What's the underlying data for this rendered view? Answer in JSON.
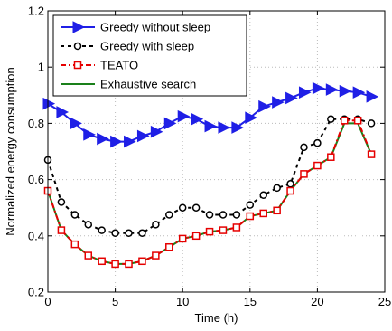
{
  "chart_data": {
    "type": "line",
    "xlabel": "Time (h)",
    "ylabel": "Normalized energy consumption",
    "xlim": [
      0,
      25
    ],
    "ylim": [
      0.2,
      1.2
    ],
    "xticks": [
      0,
      5,
      10,
      15,
      20,
      25
    ],
    "yticks": [
      0.2,
      0.4,
      0.6,
      0.8,
      1,
      1.2
    ],
    "xtick_labels": [
      "0",
      "5",
      "10",
      "15",
      "20",
      "25"
    ],
    "ytick_labels": [
      "0.2",
      "0.4",
      "0.6",
      "0.8",
      "1",
      "1.2"
    ],
    "grid": "dotted",
    "legend_position": "top-left",
    "x": [
      0,
      1,
      2,
      3,
      4,
      5,
      6,
      7,
      8,
      9,
      10,
      11,
      12,
      13,
      14,
      15,
      16,
      17,
      18,
      19,
      20,
      21,
      22,
      23,
      24
    ],
    "series": [
      {
        "name": "Greedy without sleep",
        "color": "#1f1fe6",
        "style": "solid",
        "marker": "triangle-right",
        "values": [
          0.87,
          0.84,
          0.8,
          0.76,
          0.745,
          0.735,
          0.735,
          0.755,
          0.77,
          0.8,
          0.825,
          0.815,
          0.79,
          0.785,
          0.785,
          0.82,
          0.86,
          0.875,
          0.89,
          0.91,
          0.925,
          0.92,
          0.915,
          0.91,
          0.895
        ]
      },
      {
        "name": "Greedy with sleep",
        "color": "#000000",
        "style": "dashed",
        "marker": "circle",
        "values": [
          0.67,
          0.52,
          0.475,
          0.44,
          0.42,
          0.41,
          0.41,
          0.41,
          0.44,
          0.475,
          0.5,
          0.5,
          0.475,
          0.475,
          0.475,
          0.51,
          0.545,
          0.57,
          0.585,
          0.715,
          0.73,
          0.815,
          0.815,
          0.815,
          0.8
        ]
      },
      {
        "name": "TEATO",
        "color": "#e60000",
        "style": "dashdot",
        "marker": "square",
        "values": [
          0.56,
          0.42,
          0.37,
          0.33,
          0.31,
          0.3,
          0.3,
          0.31,
          0.33,
          0.36,
          0.39,
          0.4,
          0.415,
          0.42,
          0.43,
          0.47,
          0.48,
          0.49,
          0.56,
          0.62,
          0.65,
          0.68,
          0.81,
          0.81,
          0.69
        ]
      },
      {
        "name": "Exhaustive search",
        "color": "#1a801a",
        "style": "solid",
        "marker": "none",
        "values": [
          0.56,
          0.42,
          0.37,
          0.33,
          0.31,
          0.3,
          0.3,
          0.31,
          0.33,
          0.36,
          0.39,
          0.4,
          0.415,
          0.42,
          0.43,
          0.47,
          0.48,
          0.49,
          0.56,
          0.62,
          0.65,
          0.68,
          0.8,
          0.8,
          0.69
        ]
      }
    ]
  }
}
